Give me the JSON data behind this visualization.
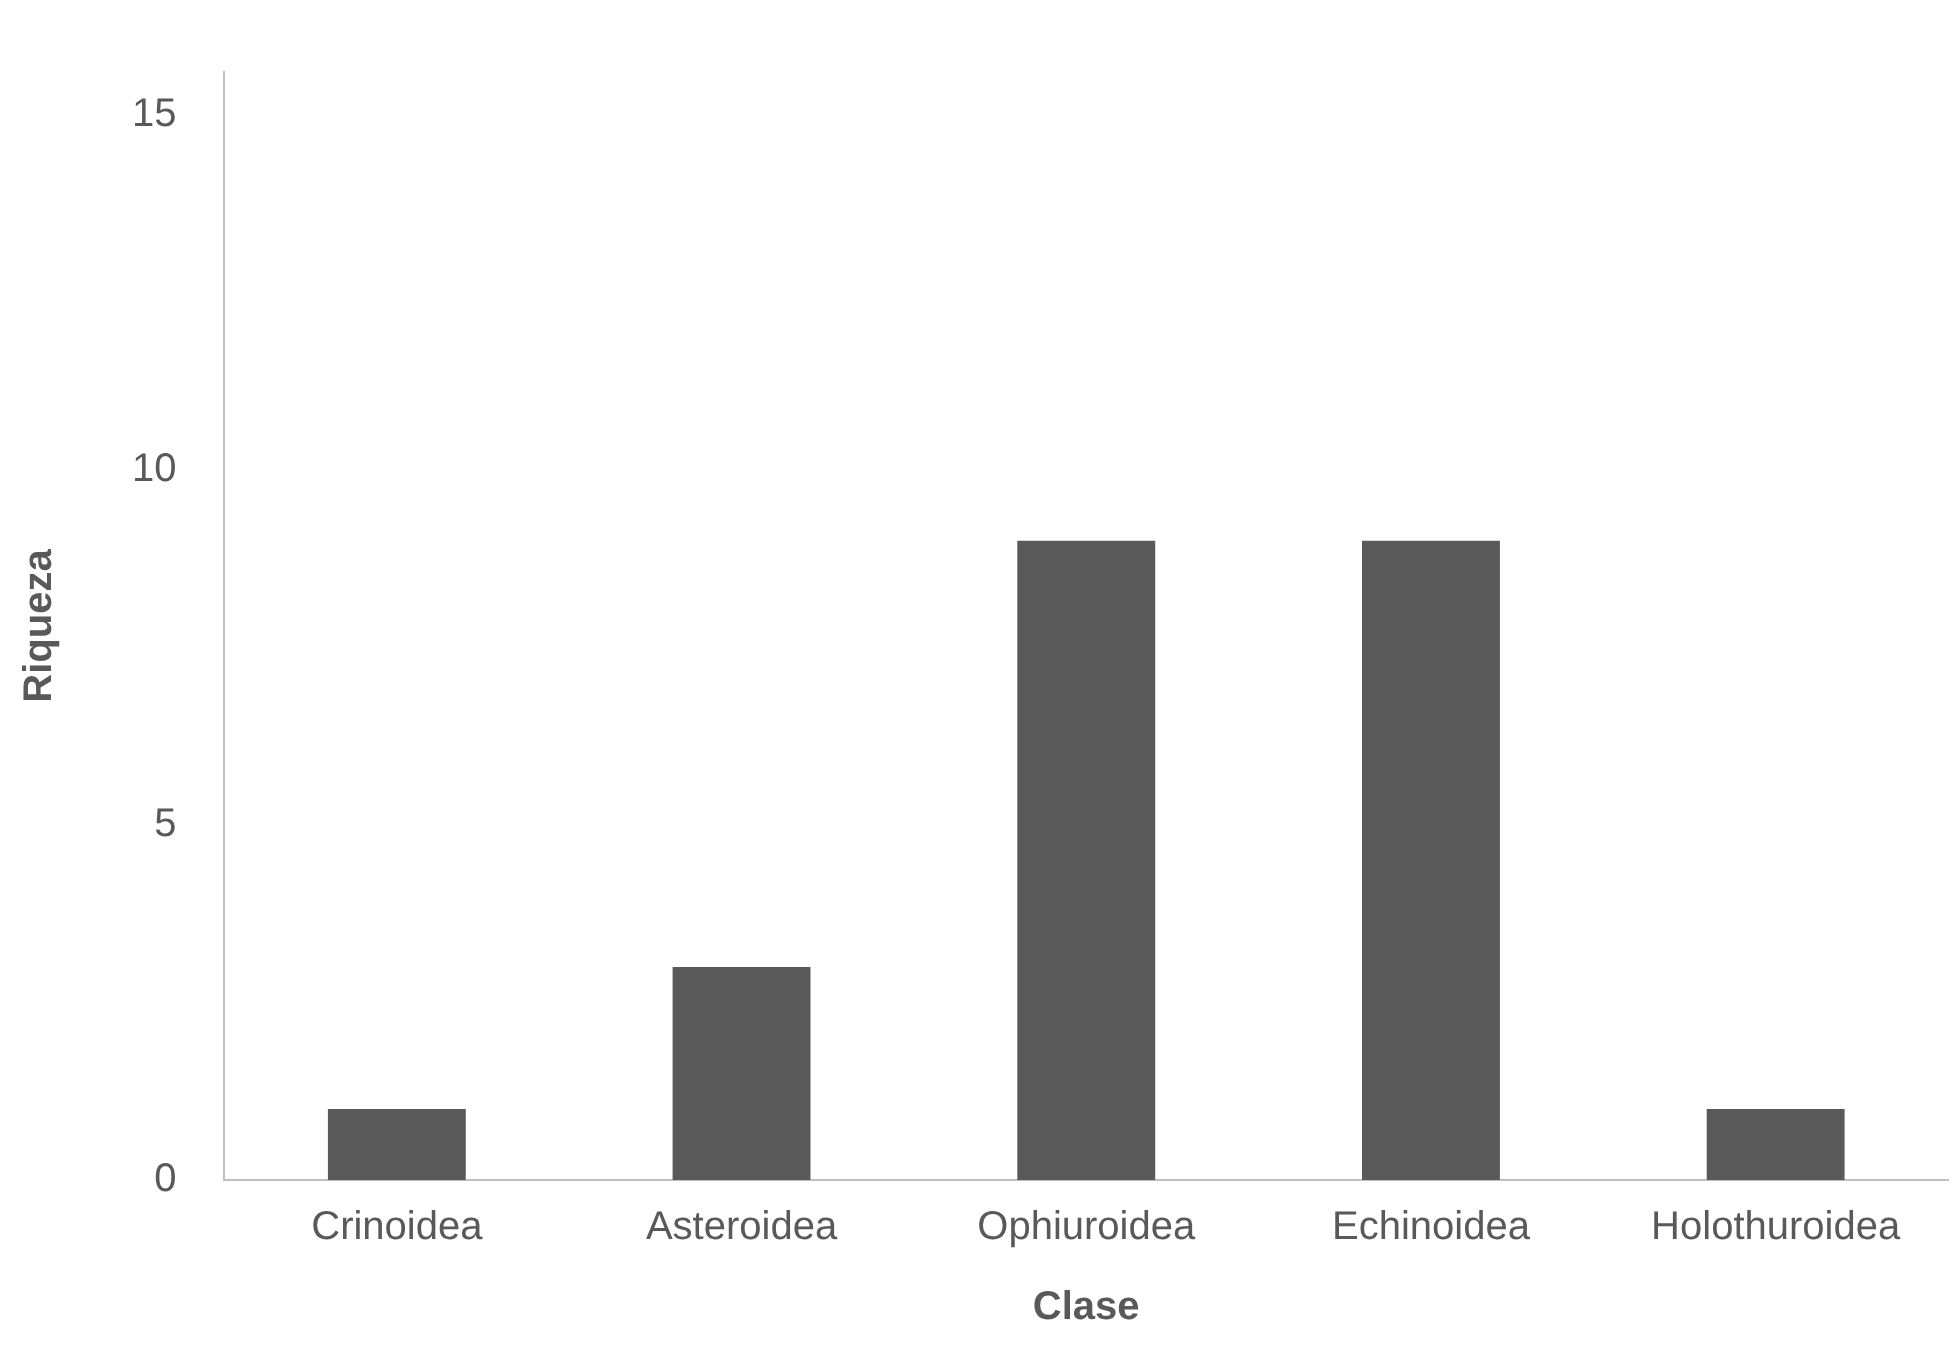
{
  "chart_data": {
    "type": "bar",
    "xlabel": "Clase",
    "ylabel": "Riqueza",
    "categories": [
      "Crinoidea",
      "Asteroidea",
      "Ophiuroidea",
      "Echinoidea",
      "Holothuroidea"
    ],
    "values": [
      1,
      3,
      9,
      9,
      1
    ],
    "color": "#595959",
    "ylim": [
      0,
      15.6
    ],
    "yticks": [
      0,
      5,
      10,
      15
    ],
    "grid": false,
    "legend": false
  }
}
